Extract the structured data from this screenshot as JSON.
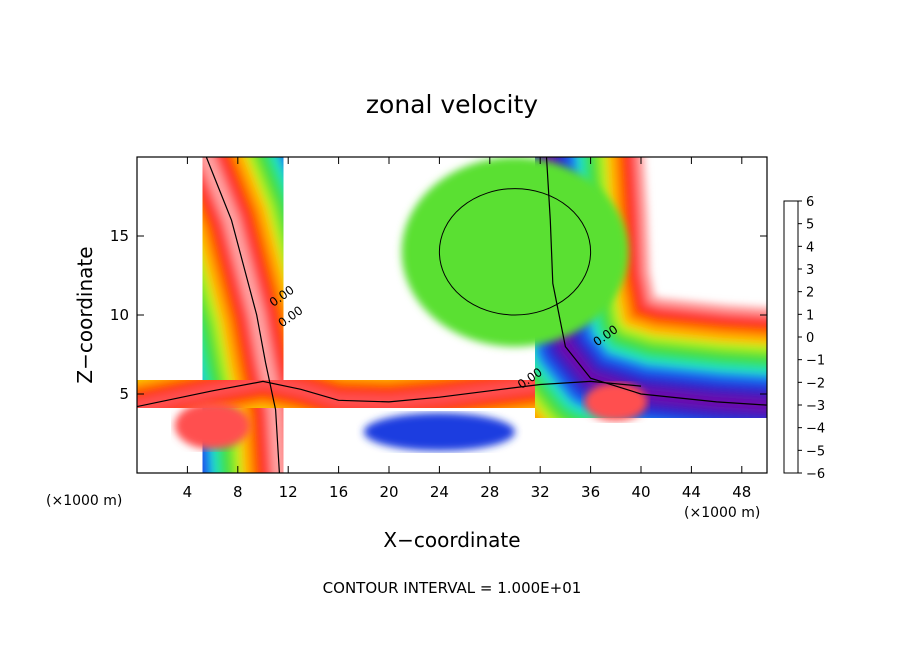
{
  "chart_data": {
    "type": "heatmap",
    "title": "zonal velocity",
    "xlabel": "X−coordinate",
    "ylabel": "Z−coordinate",
    "x_unit": "(×1000 m)",
    "y_unit": "(×1000 m)",
    "xlim": [
      0,
      50
    ],
    "ylim": [
      0,
      20
    ],
    "x_ticks": [
      4,
      8,
      12,
      16,
      20,
      24,
      28,
      32,
      36,
      40,
      44,
      48
    ],
    "y_ticks": [
      5,
      10,
      15
    ],
    "colorbar": {
      "ticks": [
        "6",
        "5",
        "4",
        "3",
        "2",
        "1",
        "0",
        "−1",
        "−2",
        "−3",
        "−4",
        "−5",
        "−6"
      ],
      "range": [
        -6,
        6
      ],
      "colors": [
        "#6a0dad",
        "#3a1ec0",
        "#1f3ee0",
        "#1e7cf0",
        "#1ec0f0",
        "#20e0c0",
        "#30e060",
        "#5ae030",
        "#b0f020",
        "#f0f020",
        "#ffc000",
        "#ff8000",
        "#ff3000",
        "#ff5050",
        "#ffa0a0"
      ]
    },
    "contour_labels": [
      "0.00",
      "0.00",
      "0.00",
      "0.00"
    ],
    "bands": [
      {
        "name": "left-upper-plume",
        "v": [
          -6,
          -5,
          -4,
          -3,
          -2,
          -1,
          0,
          1,
          2,
          3,
          4,
          5,
          6
        ],
        "pts": [
          [
            5.5,
            20
          ],
          [
            6.5,
            18
          ],
          [
            7.5,
            16
          ],
          [
            8.5,
            13
          ],
          [
            9.5,
            10
          ],
          [
            10.2,
            7
          ],
          [
            11,
            4
          ],
          [
            11.3,
            0
          ]
        ]
      },
      {
        "name": "lower-left-jet",
        "v": [
          -6,
          -5,
          -4,
          -3,
          -2,
          -1,
          0,
          1,
          2,
          3,
          4,
          5
        ],
        "pts": [
          [
            0,
            4.2
          ],
          [
            6,
            5.2
          ],
          [
            10,
            5.8
          ],
          [
            13,
            5.3
          ],
          [
            16,
            4.6
          ],
          [
            20,
            4.5
          ],
          [
            24,
            4.8
          ],
          [
            28,
            5.2
          ],
          [
            32,
            5.6
          ],
          [
            36,
            5.8
          ],
          [
            40,
            5.5
          ]
        ]
      },
      {
        "name": "right-upper-plume",
        "v": [
          6,
          5,
          4,
          3,
          2,
          1,
          0,
          -1,
          -2,
          -3,
          -4,
          -5,
          -6
        ],
        "pts": [
          [
            32.5,
            20
          ],
          [
            32.8,
            16
          ],
          [
            33,
            12
          ],
          [
            34,
            8
          ],
          [
            36,
            6
          ],
          [
            40,
            5
          ],
          [
            46,
            4.5
          ],
          [
            50,
            4.3
          ]
        ]
      }
    ],
    "blobs": [
      {
        "name": "upper-center",
        "value": 0,
        "cx": 30,
        "cy": 14,
        "rx": 9,
        "ry": 6
      },
      {
        "name": "lower-right",
        "value": 5,
        "cx": 38,
        "cy": 4.5,
        "rx": 2.5,
        "ry": 1.2
      },
      {
        "name": "lower-left",
        "value": 5,
        "cx": 6,
        "cy": 3,
        "rx": 3,
        "ry": 1.5
      },
      {
        "name": "bottom-mid",
        "value": -4,
        "cx": 24,
        "cy": 2.6,
        "rx": 6,
        "ry": 1.2
      }
    ]
  },
  "footer": {
    "contour_interval": "CONTOUR INTERVAL = 1.000E+01"
  }
}
